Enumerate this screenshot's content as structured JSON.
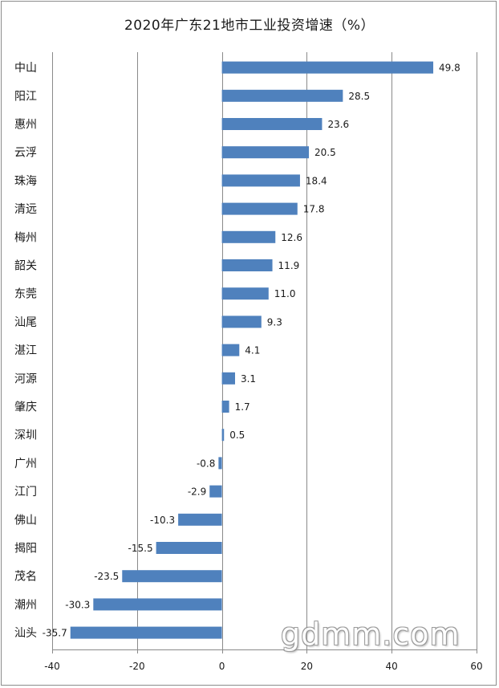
{
  "chart_data": {
    "type": "bar",
    "orientation": "horizontal",
    "title": "2020年广东21地市工业投资增速（%）",
    "categories": [
      "中山",
      "阳江",
      "惠州",
      "云浮",
      "珠海",
      "清远",
      "梅州",
      "韶关",
      "东莞",
      "汕尾",
      "湛江",
      "河源",
      "肇庆",
      "深圳",
      "广州",
      "江门",
      "佛山",
      "揭阳",
      "茂名",
      "潮州",
      "汕头"
    ],
    "values": [
      49.8,
      28.5,
      23.6,
      20.5,
      18.4,
      17.8,
      12.6,
      11.9,
      11.0,
      9.3,
      4.1,
      3.1,
      1.7,
      0.5,
      -0.8,
      -2.9,
      -10.3,
      -15.5,
      -23.5,
      -30.3,
      -35.7
    ],
    "value_labels": [
      "49.8",
      "28.5",
      "23.6",
      "20.5",
      "18.4",
      "17.8",
      "12.6",
      "11.9",
      "11.0",
      "9.3",
      "4.1",
      "3.1",
      "1.7",
      "0.5",
      "-0.8",
      "-2.9",
      "-10.3",
      "-15.5",
      "-23.5",
      "-30.3",
      "-35.7"
    ],
    "xlim": [
      -40,
      60
    ],
    "xticks": [
      -40,
      -20,
      0,
      20,
      40,
      60
    ],
    "xtick_labels": [
      "-40",
      "-20",
      "0",
      "20",
      "40",
      "60"
    ],
    "grid": true,
    "bar_color": "#4f81bd",
    "xlabel": "",
    "ylabel": ""
  },
  "watermark": "gdmm.com"
}
